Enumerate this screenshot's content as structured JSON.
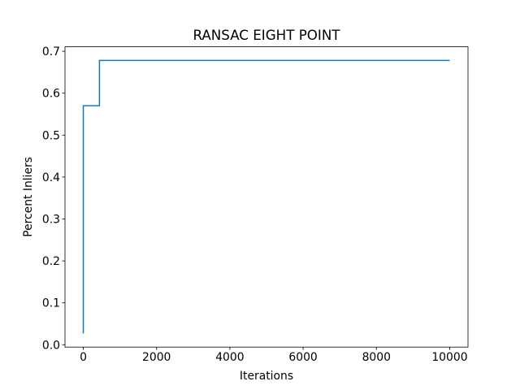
{
  "chart_data": {
    "type": "line",
    "title": "RANSAC EIGHT POINT",
    "x_label": "Iterations",
    "y_label": "Percent Inliers",
    "x": [
      0,
      0,
      440,
      440,
      10000
    ],
    "series": [
      {
        "color": "#1f77b4",
        "values": [
          0.027,
          0.57,
          0.57,
          0.678,
          0.678
        ]
      }
    ],
    "xlim": [
      -500,
      10500
    ],
    "xticks": [
      0,
      2000,
      4000,
      6000,
      8000,
      10000
    ],
    "ylim": [
      -0.0056,
      0.7106
    ],
    "yticks": [
      {
        "value": 0,
        "label": "0.0"
      },
      0.1,
      0.2,
      0.3,
      0.4,
      0.5,
      0.6,
      0.7
    ],
    "grid": false
  }
}
